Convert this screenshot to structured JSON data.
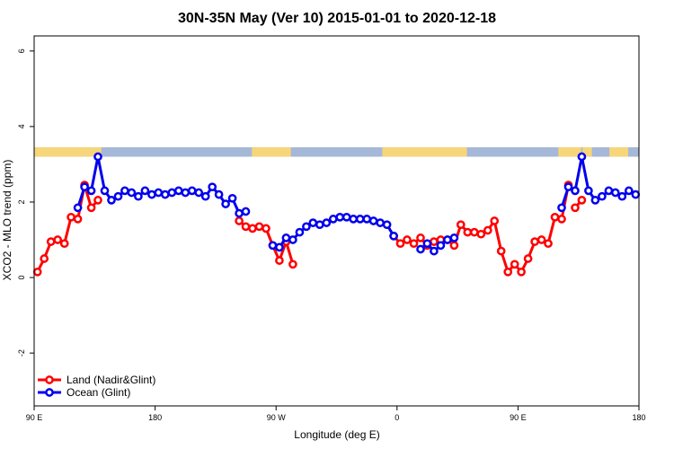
{
  "chart_data": {
    "type": "line",
    "title": "30N-35N May (Ver 10)   2015-01-01 to 2020-12-18",
    "xlabel": "Longitude (deg E)",
    "ylabel": "XCO2 - MLO trend (ppm)",
    "xlim": [
      90,
      540
    ],
    "ylim": [
      -3.4,
      6.4
    ],
    "x_ticks": [
      {
        "value": 90,
        "label": "90 E"
      },
      {
        "value": 180,
        "label": "180"
      },
      {
        "value": 270,
        "label": "90 W"
      },
      {
        "value": 360,
        "label": "0"
      },
      {
        "value": 450,
        "label": "90 E"
      },
      {
        "value": 540,
        "label": "180"
      }
    ],
    "y_ticks": [
      {
        "value": -2,
        "label": "-2"
      },
      {
        "value": 0,
        "label": "0"
      },
      {
        "value": 2,
        "label": "2"
      },
      {
        "value": 4,
        "label": "4"
      },
      {
        "value": 6,
        "label": "6"
      }
    ],
    "land_ocean_band": {
      "y_range": [
        3.2,
        3.45
      ],
      "ocean_color": "#a5b8d8",
      "land_color": "#f7d57a",
      "land_segments": [
        [
          90,
          140
        ],
        [
          252,
          281
        ],
        [
          349,
          412
        ],
        [
          480,
          497
        ],
        [
          498,
          505
        ],
        [
          518,
          532
        ]
      ]
    },
    "legend": {
      "position": "bottom-left"
    },
    "series": [
      {
        "name": "Land (Nadir&Glint)",
        "color": "#ff0000",
        "segments": [
          {
            "x": [
              92.5,
              97.5,
              102.5,
              107.5,
              112.5,
              117.5,
              122.5,
              127.5,
              132.5,
              137.5
            ],
            "y": [
              0.15,
              0.5,
              0.95,
              1.0,
              0.9,
              1.6,
              1.55,
              2.45,
              1.85,
              2.05
            ]
          },
          {
            "x": [
              242.5,
              247.5,
              252.5,
              257.5,
              262.5,
              267.5,
              272.5,
              277.5,
              282.5
            ],
            "y": [
              1.5,
              1.35,
              1.3,
              1.35,
              1.3,
              0.85,
              0.45,
              0.95,
              0.35
            ]
          },
          {
            "x": [
              357.5,
              362.5,
              367.5,
              372.5,
              377.5,
              382.5,
              387.5,
              392.5,
              397.5,
              402.5,
              407.5,
              412.5,
              417.5,
              422.5,
              427.5,
              432.5,
              437.5,
              442.5,
              447.5,
              452.5,
              457.5,
              462.5,
              467.5,
              472.5,
              477.5,
              482.5,
              487.5
            ],
            "y": [
              1.1,
              0.9,
              1.0,
              0.9,
              1.05,
              0.85,
              0.95,
              1.0,
              1.0,
              0.85,
              1.4,
              1.2,
              1.2,
              1.15,
              1.25,
              1.5,
              0.7,
              0.15,
              0.35,
              0.15,
              0.5,
              0.95,
              1.0,
              0.9,
              1.6,
              1.55,
              2.45
            ]
          },
          {
            "x": [
              492.5,
              497.5
            ],
            "y": [
              1.85,
              2.05
            ]
          }
        ]
      },
      {
        "name": "Ocean (Glint)",
        "color": "#0000ee",
        "segments": [
          {
            "x": [
              122.5,
              127.5,
              132.5,
              137.5,
              142.5,
              147.5,
              152.5,
              157.5,
              162.5,
              167.5,
              172.5,
              177.5,
              182.5,
              187.5,
              192.5,
              197.5,
              202.5,
              207.5,
              212.5,
              217.5,
              222.5,
              227.5,
              232.5,
              237.5,
              242.5,
              247.5
            ],
            "y": [
              1.85,
              2.4,
              2.3,
              3.2,
              2.3,
              2.05,
              2.15,
              2.3,
              2.25,
              2.15,
              2.3,
              2.2,
              2.25,
              2.2,
              2.25,
              2.3,
              2.25,
              2.3,
              2.25,
              2.15,
              2.4,
              2.2,
              1.95,
              2.1,
              1.7,
              1.75
            ]
          },
          {
            "x": [
              267.5,
              272.5,
              277.5,
              282.5,
              287.5,
              292.5,
              297.5,
              302.5,
              307.5,
              312.5,
              317.5,
              322.5,
              327.5,
              332.5,
              337.5,
              342.5,
              347.5,
              352.5,
              357.5
            ],
            "y": [
              0.85,
              0.8,
              1.05,
              1.0,
              1.2,
              1.35,
              1.45,
              1.4,
              1.45,
              1.55,
              1.6,
              1.6,
              1.55,
              1.55,
              1.55,
              1.5,
              1.45,
              1.4,
              1.1
            ]
          },
          {
            "x": [
              377.5,
              382.5,
              387.5,
              392.5,
              397.5,
              402.5
            ],
            "y": [
              0.75,
              0.9,
              0.7,
              0.85,
              1.0,
              1.05
            ]
          },
          {
            "x": [
              482.5,
              487.5,
              492.5,
              497.5,
              502.5,
              507.5,
              512.5,
              517.5,
              522.5,
              527.5,
              532.5,
              537.5
            ],
            "y": [
              1.85,
              2.4,
              2.3,
              3.2,
              2.3,
              2.05,
              2.15,
              2.3,
              2.25,
              2.15,
              2.3,
              2.2
            ]
          }
        ]
      }
    ]
  }
}
